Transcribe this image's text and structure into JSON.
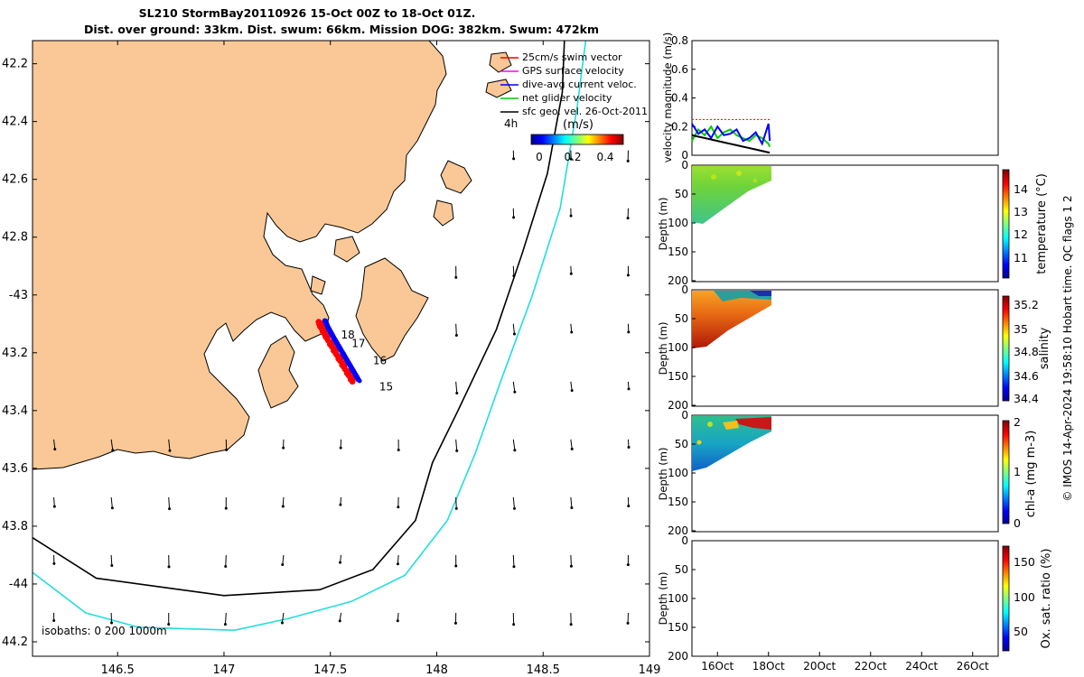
{
  "title": {
    "line1": "SL210 StormBay20110926 15-Oct 00Z to 18-Oct 01Z.",
    "line2": "Dist. over ground: 33km. Dist. swum: 66km. Mission DOG: 382km. Swum: 472km"
  },
  "side_note": "© IMOS 14-Apr-2024 19:58:10 Hobart time. QC flags 1  2",
  "colors": {
    "land": "#f9c896",
    "track_red": "#ff0000",
    "track_blue": "#0000ff",
    "isobath_200": "#000000",
    "isobath_1000": "#22dddd"
  },
  "chart_data": [
    {
      "type": "map",
      "xlim": [
        146.1,
        149.0
      ],
      "ylim": [
        -44.25,
        -42.12
      ],
      "x_ticks": [
        146.5,
        147,
        147.5,
        148,
        148.5,
        149
      ],
      "x_tick_labels": [
        "146.5",
        "147",
        "147.5",
        "148",
        "148.5",
        "149"
      ],
      "y_ticks": [
        -42.2,
        -42.4,
        -42.6,
        -42.8,
        -43,
        -43.2,
        -43.4,
        -43.6,
        -43.8,
        -44,
        -44.2
      ],
      "y_tick_labels": [
        "42.2",
        "42.4",
        "42.6",
        "42.8",
        "-43",
        "43.2",
        "43.4",
        "43.6",
        "43.8",
        "-44",
        "44.2"
      ],
      "legend": {
        "position": "top-right",
        "entries": [
          {
            "label": "25cm/s swim vector",
            "color": "#ff0000"
          },
          {
            "label": "GPS surface velocity",
            "color": "#ff00ff"
          },
          {
            "label": "dive-avg current veloc.",
            "color": "#0000ff"
          },
          {
            "label": "net glider velocity",
            "color": "#00cc00"
          },
          {
            "label": "sfc geo. vel. 26-Oct-2011",
            "color": "#000000"
          }
        ]
      },
      "speed_colorbar": {
        "label": "(m/s)",
        "ticks": [
          "0",
          "0.2",
          "0.4"
        ],
        "range": [
          0,
          0.5
        ],
        "time_label": "4h"
      },
      "isobath_label": "isobaths: 0   200  1000m",
      "day_labels": [
        {
          "text": "18",
          "lon": 147.55,
          "lat": -43.15
        },
        {
          "text": "17",
          "lon": 147.6,
          "lat": -43.18
        },
        {
          "text": "16",
          "lon": 147.7,
          "lat": -43.24
        },
        {
          "text": "15",
          "lon": 147.73,
          "lat": -43.33
        }
      ],
      "glider_track": [
        [
          147.62,
          -43.3
        ],
        [
          147.58,
          -43.25
        ],
        [
          147.54,
          -43.2
        ],
        [
          147.5,
          -43.15
        ],
        [
          147.47,
          -43.11
        ],
        [
          147.46,
          -43.09
        ]
      ],
      "isobath_200m": [
        [
          148.6,
          -42.12
        ],
        [
          148.59,
          -42.3
        ],
        [
          148.52,
          -42.58
        ],
        [
          148.4,
          -42.86
        ],
        [
          148.28,
          -43.12
        ],
        [
          148.1,
          -43.4
        ],
        [
          147.98,
          -43.58
        ],
        [
          147.9,
          -43.78
        ],
        [
          147.7,
          -43.95
        ],
        [
          147.45,
          -44.02
        ],
        [
          147.0,
          -44.04
        ],
        [
          146.7,
          -44.01
        ],
        [
          146.4,
          -43.98
        ],
        [
          146.1,
          -43.84
        ]
      ],
      "isobath_1000m": [
        [
          148.7,
          -42.12
        ],
        [
          148.66,
          -42.35
        ],
        [
          148.58,
          -42.7
        ],
        [
          148.45,
          -43.0
        ],
        [
          148.3,
          -43.3
        ],
        [
          148.18,
          -43.55
        ],
        [
          148.05,
          -43.78
        ],
        [
          147.85,
          -43.97
        ],
        [
          147.6,
          -44.06
        ],
        [
          147.3,
          -44.12
        ],
        [
          147.05,
          -44.16
        ],
        [
          146.6,
          -44.15
        ],
        [
          146.35,
          -44.1
        ],
        [
          146.1,
          -43.96
        ]
      ]
    },
    {
      "type": "line",
      "ylabel": "velocity magnitude (m/s)",
      "ylim": [
        0,
        0.8
      ],
      "y_ticks": [
        0,
        0.2,
        0.4,
        0.6,
        0.8
      ],
      "y_tick_labels": [
        "0",
        "0.2",
        "0.4",
        "0.6",
        "0.8"
      ],
      "x": [
        15.0,
        15.25,
        15.5,
        15.75,
        16.0,
        16.25,
        16.5,
        16.75,
        17.0,
        17.25,
        17.5,
        17.75,
        18.0,
        18.05
      ],
      "series": [
        {
          "name": "25cm/s swim vector",
          "color": "#ff0000",
          "values": [
            0.25,
            0.25,
            0.25,
            0.25,
            0.25,
            0.25,
            0.25,
            0.25,
            0.25,
            0.25,
            0.25,
            0.25,
            0.25,
            0.25
          ]
        },
        {
          "name": "net glider velocity",
          "color": "#00cc00",
          "values": [
            0.1,
            0.18,
            0.14,
            0.2,
            0.12,
            0.16,
            0.18,
            0.14,
            0.12,
            0.1,
            0.14,
            0.12,
            0.08,
            0.06
          ]
        },
        {
          "name": "dive-avg current veloc.",
          "color": "#0000ff",
          "values": [
            0.22,
            0.15,
            0.18,
            0.12,
            0.2,
            0.14,
            0.15,
            0.18,
            0.1,
            0.12,
            0.16,
            0.08,
            0.22,
            0.1
          ]
        },
        {
          "name": "sfc geo. vel.",
          "color": "#000000",
          "values": [
            0.14,
            0.13,
            0.12,
            0.11,
            0.1,
            0.09,
            0.08,
            0.07,
            0.06,
            0.05,
            0.04,
            0.03,
            0.02,
            0.02
          ]
        }
      ]
    },
    {
      "type": "heatmap",
      "variable": "temperature",
      "ylabel": "Depth (m)",
      "y_ticks": [
        "0",
        "50",
        "100",
        "150",
        "200"
      ],
      "colorbar_label": "temperature (°C)",
      "colorbar_ticks": [
        "11",
        "12",
        "13",
        "14"
      ],
      "colorbar_range": [
        10.5,
        15
      ]
    },
    {
      "type": "heatmap",
      "variable": "salinity",
      "ylabel": "Depth (m)",
      "y_ticks": [
        "0",
        "50",
        "100",
        "150",
        "200"
      ],
      "colorbar_label": "salinity",
      "colorbar_ticks": [
        "34.4",
        "34.6",
        "34.8",
        "35",
        "35.2"
      ],
      "colorbar_range": [
        34.35,
        35.3
      ]
    },
    {
      "type": "heatmap",
      "variable": "chl-a",
      "ylabel": "Depth (m)",
      "y_ticks": [
        "0",
        "50",
        "100",
        "150",
        "200"
      ],
      "colorbar_label": "chl-a (mg m-3)",
      "colorbar_ticks": [
        "0",
        "1",
        "2"
      ],
      "colorbar_range": [
        0,
        2
      ]
    },
    {
      "type": "heatmap",
      "variable": "oxygen saturation",
      "ylabel": "Depth (m)",
      "y_ticks": [
        "0",
        "50",
        "100",
        "150",
        "200"
      ],
      "colorbar_label": "Ox. sat. ratio (%)",
      "colorbar_ticks": [
        "50",
        "100",
        "150"
      ],
      "colorbar_range": [
        20,
        175
      ],
      "x_tick_labels": [
        "16Oct",
        "18Oct",
        "20Oct",
        "22Oct",
        "24Oct",
        "26Oct"
      ]
    }
  ]
}
